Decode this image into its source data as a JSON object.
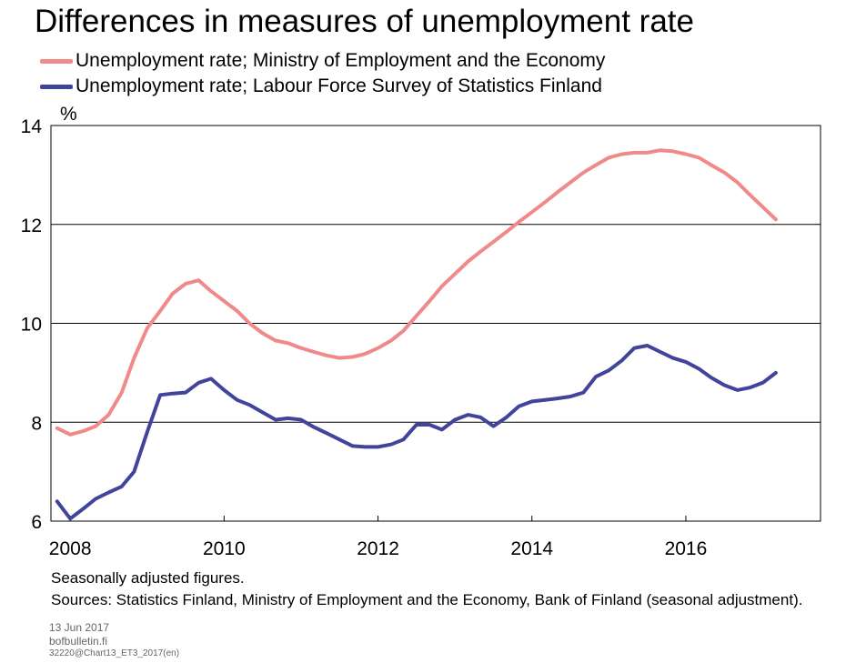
{
  "chart_data": {
    "type": "line",
    "title": "Differences in measures of unemployment rate",
    "ylabel": "%",
    "xlabel": "",
    "xlim": [
      2007.75,
      2017.75
    ],
    "ylim": [
      6,
      14
    ],
    "y_ticks": [
      6,
      8,
      10,
      12,
      14
    ],
    "x_ticks": [
      2008,
      2010,
      2012,
      2014,
      2016
    ],
    "grid": "horizontal",
    "legend_position": "top-left",
    "series": [
      {
        "name": "Unemployment rate; Ministry of Employment and the Economy",
        "color": "#f08a8a",
        "x": [
          2007.83,
          2008.0,
          2008.17,
          2008.33,
          2008.5,
          2008.67,
          2008.83,
          2009.0,
          2009.17,
          2009.33,
          2009.5,
          2009.67,
          2009.83,
          2010.0,
          2010.17,
          2010.33,
          2010.5,
          2010.67,
          2010.83,
          2011.0,
          2011.17,
          2011.33,
          2011.5,
          2011.67,
          2011.83,
          2012.0,
          2012.17,
          2012.33,
          2012.5,
          2012.67,
          2012.83,
          2013.0,
          2013.17,
          2013.33,
          2013.5,
          2013.67,
          2013.83,
          2014.0,
          2014.17,
          2014.33,
          2014.5,
          2014.67,
          2014.83,
          2015.0,
          2015.17,
          2015.33,
          2015.5,
          2015.67,
          2015.83,
          2016.0,
          2016.17,
          2016.33,
          2016.5,
          2016.67,
          2016.83,
          2017.0,
          2017.17
        ],
        "values": [
          7.88,
          7.75,
          7.82,
          7.92,
          8.15,
          8.6,
          9.3,
          9.9,
          10.25,
          10.6,
          10.8,
          10.87,
          10.65,
          10.45,
          10.25,
          10.0,
          9.8,
          9.65,
          9.6,
          9.5,
          9.42,
          9.35,
          9.3,
          9.32,
          9.38,
          9.5,
          9.65,
          9.85,
          10.15,
          10.45,
          10.75,
          11.0,
          11.25,
          11.45,
          11.65,
          11.85,
          12.05,
          12.25,
          12.45,
          12.65,
          12.85,
          13.05,
          13.2,
          13.35,
          13.42,
          13.45,
          13.45,
          13.5,
          13.48,
          13.42,
          13.35,
          13.2,
          13.05,
          12.85,
          12.6,
          12.35,
          12.1
        ]
      },
      {
        "name": "Unemployment rate; Labour Force Survey of Statistics Finland",
        "color": "#41449a",
        "x": [
          2007.83,
          2008.0,
          2008.17,
          2008.33,
          2008.5,
          2008.67,
          2008.83,
          2009.0,
          2009.17,
          2009.33,
          2009.5,
          2009.67,
          2009.83,
          2010.0,
          2010.17,
          2010.33,
          2010.5,
          2010.67,
          2010.83,
          2011.0,
          2011.17,
          2011.33,
          2011.5,
          2011.67,
          2011.83,
          2012.0,
          2012.17,
          2012.33,
          2012.5,
          2012.67,
          2012.83,
          2013.0,
          2013.17,
          2013.33,
          2013.5,
          2013.67,
          2013.83,
          2014.0,
          2014.17,
          2014.33,
          2014.5,
          2014.67,
          2014.83,
          2015.0,
          2015.17,
          2015.33,
          2015.5,
          2015.67,
          2015.83,
          2016.0,
          2016.17,
          2016.33,
          2016.5,
          2016.67,
          2016.83,
          2017.0,
          2017.17
        ],
        "values": [
          6.4,
          6.05,
          6.25,
          6.45,
          6.58,
          6.7,
          7.0,
          7.8,
          8.55,
          8.58,
          8.6,
          8.8,
          8.88,
          8.65,
          8.45,
          8.35,
          8.2,
          8.05,
          8.08,
          8.05,
          7.9,
          7.78,
          7.65,
          7.52,
          7.5,
          7.5,
          7.55,
          7.65,
          7.95,
          7.95,
          7.85,
          8.05,
          8.15,
          8.1,
          7.92,
          8.1,
          8.32,
          8.42,
          8.45,
          8.48,
          8.52,
          8.6,
          8.92,
          9.05,
          9.25,
          9.5,
          9.55,
          9.42,
          9.3,
          9.22,
          9.08,
          8.9,
          8.75,
          8.65,
          8.7,
          8.8,
          9.0
        ]
      }
    ]
  },
  "notes": {
    "line1": "Seasonally adjusted figures.",
    "line2": "Sources: Statistics Finland,  Ministry of Employment and the Economy, Bank of Finland  (seasonal adjustment)."
  },
  "footer": {
    "date": "13 Jun 2017",
    "site": "bofbulletin.fi",
    "code": "32220@Chart13_ET3_2017(en)"
  }
}
